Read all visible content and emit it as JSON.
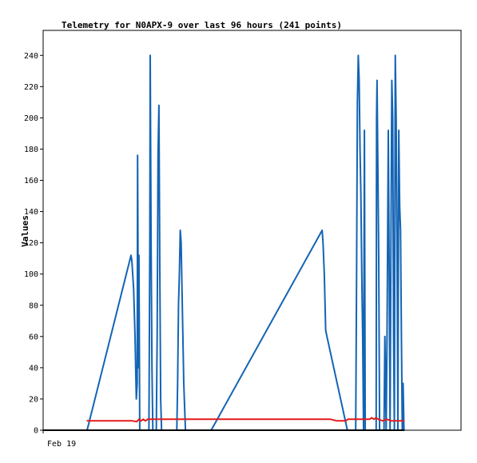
{
  "chart_data": {
    "type": "line",
    "title": "Telemetry for N0APX-9 over last 96 hours (241 points)",
    "xlabel": "",
    "ylabel": "Values",
    "x_tick_labels": [
      "Feb 19"
    ],
    "y_ticks": [
      0,
      20,
      40,
      60,
      80,
      100,
      120,
      140,
      160,
      180,
      200,
      220,
      240
    ],
    "ylim": [
      0,
      256
    ],
    "xlim": [
      0,
      96
    ],
    "grid": false,
    "legend": "none",
    "series": [
      {
        "color": "#1464b4",
        "points": [
          [
            10.1,
            0
          ],
          [
            10.1,
            0
          ],
          [
            20.2,
            112
          ],
          [
            20.4,
            108
          ],
          [
            20.8,
            90
          ],
          [
            21.1,
            60
          ],
          [
            21.4,
            20
          ],
          [
            21.6,
            30
          ],
          [
            21.7,
            176
          ],
          [
            21.9,
            40
          ],
          [
            22.0,
            112
          ],
          [
            22.2,
            0
          ],
          [
            24.3,
            0
          ],
          [
            24.5,
            120
          ],
          [
            24.6,
            240
          ],
          [
            24.8,
            120
          ],
          [
            25.0,
            40
          ],
          [
            25.2,
            0
          ],
          [
            26.0,
            0
          ],
          [
            26.2,
            60
          ],
          [
            26.4,
            176
          ],
          [
            26.6,
            208
          ],
          [
            26.8,
            104
          ],
          [
            27.0,
            20
          ],
          [
            27.2,
            0
          ],
          [
            30.7,
            0
          ],
          [
            30.9,
            30
          ],
          [
            31.1,
            80
          ],
          [
            31.3,
            100
          ],
          [
            31.5,
            128
          ],
          [
            31.7,
            120
          ],
          [
            31.9,
            90
          ],
          [
            32.1,
            60
          ],
          [
            32.3,
            30
          ],
          [
            32.7,
            0
          ],
          [
            38.6,
            0
          ],
          [
            64.1,
            128
          ],
          [
            64.3,
            120
          ],
          [
            64.6,
            100
          ],
          [
            64.9,
            64
          ],
          [
            65.2,
            60
          ],
          [
            69.9,
            0
          ],
          [
            71.8,
            0
          ],
          [
            72.0,
            100
          ],
          [
            72.2,
            210
          ],
          [
            72.4,
            240
          ],
          [
            72.6,
            224
          ],
          [
            72.8,
            180
          ],
          [
            73.0,
            150
          ],
          [
            73.2,
            100
          ],
          [
            73.4,
            60
          ],
          [
            73.6,
            0
          ],
          [
            73.8,
            192
          ],
          [
            74.0,
            0
          ],
          [
            76.5,
            0
          ],
          [
            76.6,
            200
          ],
          [
            76.7,
            224
          ],
          [
            76.9,
            170
          ],
          [
            77.1,
            110
          ],
          [
            77.3,
            0
          ],
          [
            78.3,
            0
          ],
          [
            78.5,
            60
          ],
          [
            78.8,
            0
          ],
          [
            79.0,
            60
          ],
          [
            79.3,
            192
          ],
          [
            79.5,
            100
          ],
          [
            79.7,
            0
          ],
          [
            79.9,
            120
          ],
          [
            80.1,
            224
          ],
          [
            80.3,
            200
          ],
          [
            80.5,
            60
          ],
          [
            80.7,
            0
          ],
          [
            80.9,
            240
          ],
          [
            81.1,
            200
          ],
          [
            81.3,
            120
          ],
          [
            81.5,
            0
          ],
          [
            81.7,
            192
          ],
          [
            81.9,
            144
          ],
          [
            82.1,
            128
          ],
          [
            82.3,
            60
          ],
          [
            82.5,
            0
          ],
          [
            82.7,
            30
          ],
          [
            82.9,
            0
          ]
        ]
      },
      {
        "color": "#e31a1c",
        "points": [
          [
            10.0,
            6
          ],
          [
            20.5,
            6
          ],
          [
            21.5,
            5.5
          ],
          [
            22.0,
            7
          ],
          [
            22.5,
            6
          ],
          [
            23.0,
            7
          ],
          [
            23.5,
            6
          ],
          [
            24.0,
            7
          ],
          [
            25.0,
            7
          ],
          [
            30.0,
            7
          ],
          [
            40.0,
            7
          ],
          [
            50.0,
            7
          ],
          [
            60.0,
            7
          ],
          [
            64.0,
            7
          ],
          [
            66.0,
            7
          ],
          [
            67.5,
            6
          ],
          [
            69.5,
            6
          ],
          [
            70.0,
            7
          ],
          [
            74.0,
            7
          ],
          [
            75.0,
            7
          ],
          [
            75.5,
            8
          ],
          [
            76.0,
            7
          ],
          [
            76.5,
            8
          ],
          [
            77.0,
            7
          ],
          [
            78.0,
            6
          ],
          [
            79.0,
            7
          ],
          [
            80.0,
            6
          ],
          [
            81.0,
            6
          ],
          [
            82.0,
            6
          ],
          [
            83.0,
            6
          ]
        ]
      },
      {
        "color": "#000000",
        "points": [
          [
            0,
            0
          ],
          [
            83,
            0
          ]
        ]
      }
    ]
  }
}
